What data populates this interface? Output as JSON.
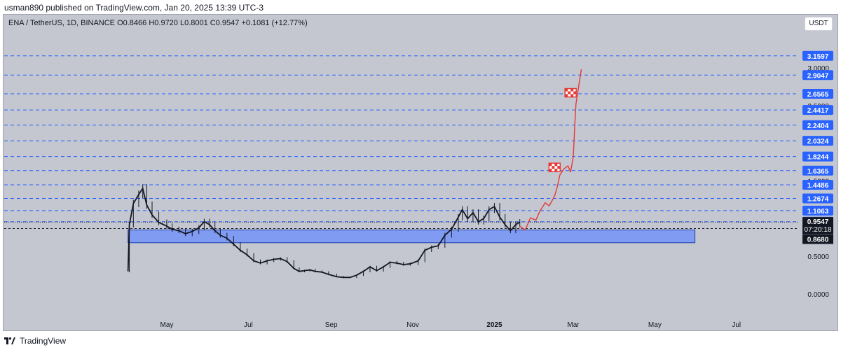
{
  "header": {
    "published": "usman890 published on TradingView.com, Jan 20, 2025 13:39 UTC-3",
    "symbol_line": "ENA / TetherUS, 1D, BINANCE  O0.8466  H0.9720  L0.8001  C0.9547  +0.1081 (+12.77%)",
    "unit_button": "USDT"
  },
  "footer": {
    "brand": "TradingView"
  },
  "colors": {
    "background": "#c4c7d0",
    "level_line": "#2962ff",
    "level_label_bg": "#2962ff",
    "zone_fill": "#7f9cf2",
    "zone_border": "#1e3fa8",
    "projection": "#e53935",
    "candle": "#131722",
    "current_price_bg": "#131722"
  },
  "chart_data": {
    "type": "line",
    "instrument": "ENA / TetherUS",
    "timeframe": "1D",
    "y_ticks": [
      "3.0000",
      "2.5000",
      "1.5000",
      "0.5000",
      "0.0000"
    ],
    "y_tick_values": [
      3.0,
      2.5,
      1.5,
      0.5,
      0.0
    ],
    "x_tick_labels": [
      "May",
      "Jul",
      "Sep",
      "Nov",
      "2025",
      "Mar",
      "May",
      "Jul"
    ],
    "x_tick_dates": [
      "2024-05-01",
      "2024-07-01",
      "2024-09-01",
      "2024-11-01",
      "2025-01-01",
      "2025-03-01",
      "2025-05-01",
      "2025-07-01"
    ],
    "horizontal_levels": [
      3.1597,
      2.9047,
      2.6565,
      2.4417,
      2.2404,
      2.0324,
      1.8244,
      1.6365,
      1.4486,
      1.2674,
      1.1063,
      0.9587
    ],
    "horizontal_level_labels": [
      "3.1597",
      "2.9047",
      "2.6565",
      "2.4417",
      "2.2404",
      "2.0324",
      "1.8244",
      "1.6365",
      "1.4486",
      "1.2674",
      "1.1063",
      "0.9587"
    ],
    "current_price": 0.9547,
    "current_price_label": "0.9547",
    "countdown_label": "07:20:18",
    "support_level": 0.868,
    "support_level_label": "0.8680",
    "demand_zone": {
      "top": 0.85,
      "bottom": 0.68,
      "start": "2024-04-02",
      "end": "2025-05-31"
    },
    "price_series": {
      "name": "",
      "points": [
        [
          "2024-04-02",
          0.3
        ],
        [
          "2024-04-03",
          0.92
        ],
        [
          "2024-04-06",
          1.2
        ],
        [
          "2024-04-10",
          1.32
        ],
        [
          "2024-04-13",
          1.4
        ],
        [
          "2024-04-16",
          1.18
        ],
        [
          "2024-04-20",
          1.05
        ],
        [
          "2024-04-25",
          0.95
        ],
        [
          "2024-05-01",
          0.9
        ],
        [
          "2024-05-05",
          0.86
        ],
        [
          "2024-05-10",
          0.84
        ],
        [
          "2024-05-15",
          0.8
        ],
        [
          "2024-05-20",
          0.83
        ],
        [
          "2024-05-25",
          0.88
        ],
        [
          "2024-05-29",
          0.96
        ],
        [
          "2024-06-02",
          0.92
        ],
        [
          "2024-06-06",
          0.84
        ],
        [
          "2024-06-10",
          0.78
        ],
        [
          "2024-06-15",
          0.74
        ],
        [
          "2024-06-20",
          0.66
        ],
        [
          "2024-06-25",
          0.58
        ],
        [
          "2024-06-30",
          0.52
        ],
        [
          "2024-07-05",
          0.44
        ],
        [
          "2024-07-10",
          0.41
        ],
        [
          "2024-07-15",
          0.44
        ],
        [
          "2024-07-20",
          0.46
        ],
        [
          "2024-07-25",
          0.47
        ],
        [
          "2024-07-30",
          0.43
        ],
        [
          "2024-08-04",
          0.34
        ],
        [
          "2024-08-08",
          0.3
        ],
        [
          "2024-08-12",
          0.31
        ],
        [
          "2024-08-16",
          0.32
        ],
        [
          "2024-08-20",
          0.3
        ],
        [
          "2024-08-25",
          0.29
        ],
        [
          "2024-08-30",
          0.26
        ],
        [
          "2024-09-05",
          0.23
        ],
        [
          "2024-09-10",
          0.22
        ],
        [
          "2024-09-15",
          0.22
        ],
        [
          "2024-09-20",
          0.25
        ],
        [
          "2024-09-25",
          0.3
        ],
        [
          "2024-09-30",
          0.36
        ],
        [
          "2024-10-05",
          0.31
        ],
        [
          "2024-10-10",
          0.36
        ],
        [
          "2024-10-15",
          0.42
        ],
        [
          "2024-10-20",
          0.41
        ],
        [
          "2024-10-25",
          0.39
        ],
        [
          "2024-10-30",
          0.4
        ],
        [
          "2024-11-05",
          0.44
        ],
        [
          "2024-11-10",
          0.58
        ],
        [
          "2024-11-15",
          0.62
        ],
        [
          "2024-11-20",
          0.64
        ],
        [
          "2024-11-25",
          0.78
        ],
        [
          "2024-11-30",
          0.86
        ],
        [
          "2024-12-05",
          1.02
        ],
        [
          "2024-12-08",
          1.12
        ],
        [
          "2024-12-12",
          1.0
        ],
        [
          "2024-12-16",
          1.08
        ],
        [
          "2024-12-20",
          0.96
        ],
        [
          "2024-12-24",
          1.0
        ],
        [
          "2024-12-28",
          1.12
        ],
        [
          "2025-01-01",
          1.16
        ],
        [
          "2025-01-05",
          1.02
        ],
        [
          "2025-01-09",
          0.92
        ],
        [
          "2025-01-13",
          0.84
        ],
        [
          "2025-01-17",
          0.92
        ],
        [
          "2025-01-20",
          0.9547
        ]
      ]
    },
    "projection_series": {
      "name": "",
      "points": [
        [
          "2025-01-20",
          0.9
        ],
        [
          "2025-01-24",
          0.85
        ],
        [
          "2025-01-28",
          1.01
        ],
        [
          "2025-02-01",
          0.98
        ],
        [
          "2025-02-04",
          1.1
        ],
        [
          "2025-02-08",
          1.21
        ],
        [
          "2025-02-11",
          1.17
        ],
        [
          "2025-02-15",
          1.3
        ],
        [
          "2025-02-17",
          1.42
        ],
        [
          "2025-02-19",
          1.58
        ],
        [
          "2025-02-22",
          1.66
        ],
        [
          "2025-02-25",
          1.7
        ],
        [
          "2025-02-27",
          1.62
        ],
        [
          "2025-03-01",
          1.82
        ],
        [
          "2025-03-02",
          2.2
        ],
        [
          "2025-03-03",
          2.52
        ],
        [
          "2025-03-05",
          2.75
        ],
        [
          "2025-03-07",
          2.98
        ]
      ]
    },
    "flag_markers": [
      {
        "date": "2025-02-15",
        "value": 1.68
      },
      {
        "date": "2025-02-27",
        "value": 2.67
      }
    ]
  }
}
